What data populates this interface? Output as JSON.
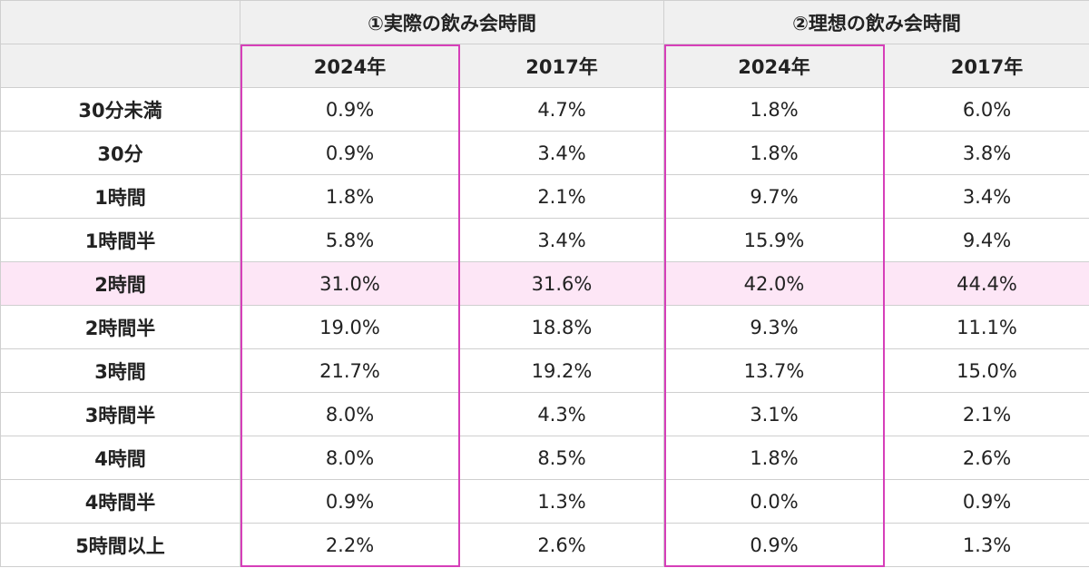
{
  "chart_data": {
    "type": "table",
    "groups": [
      {
        "label": "①実際の飲み会時間",
        "years": [
          "2024年",
          "2017年"
        ]
      },
      {
        "label": "②理想の飲み会時間",
        "years": [
          "2024年",
          "2017年"
        ]
      }
    ],
    "rows": [
      {
        "label": "30分未満",
        "values": [
          "0.9%",
          "4.7%",
          "1.8%",
          "6.0%"
        ]
      },
      {
        "label": "30分",
        "values": [
          "0.9%",
          "3.4%",
          "1.8%",
          "3.8%"
        ]
      },
      {
        "label": "1時間",
        "values": [
          "1.8%",
          "2.1%",
          "9.7%",
          "3.4%"
        ]
      },
      {
        "label": "1時間半",
        "values": [
          "5.8%",
          "3.4%",
          "15.9%",
          "9.4%"
        ]
      },
      {
        "label": "2時間",
        "values": [
          "31.0%",
          "31.6%",
          "42.0%",
          "44.4%"
        ],
        "highlight": true
      },
      {
        "label": "2時間半",
        "values": [
          "19.0%",
          "18.8%",
          "9.3%",
          "11.1%"
        ]
      },
      {
        "label": "3時間",
        "values": [
          "21.7%",
          "19.2%",
          "13.7%",
          "15.0%"
        ]
      },
      {
        "label": "3時間半",
        "values": [
          "8.0%",
          "4.3%",
          "3.1%",
          "2.1%"
        ]
      },
      {
        "label": "4時間",
        "values": [
          "8.0%",
          "8.5%",
          "1.8%",
          "2.6%"
        ]
      },
      {
        "label": "4時間半",
        "values": [
          "0.9%",
          "1.3%",
          "0.0%",
          "0.9%"
        ]
      },
      {
        "label": "5時間以上",
        "values": [
          "2.2%",
          "2.6%",
          "0.9%",
          "1.3%"
        ]
      }
    ],
    "highlight_columns": [
      0,
      2
    ],
    "colors": {
      "highlight_border": "#d63fb9",
      "highlight_row": "#fde6f6",
      "header_bg": "#f0f0f0",
      "grid": "#cfcfcf"
    }
  }
}
